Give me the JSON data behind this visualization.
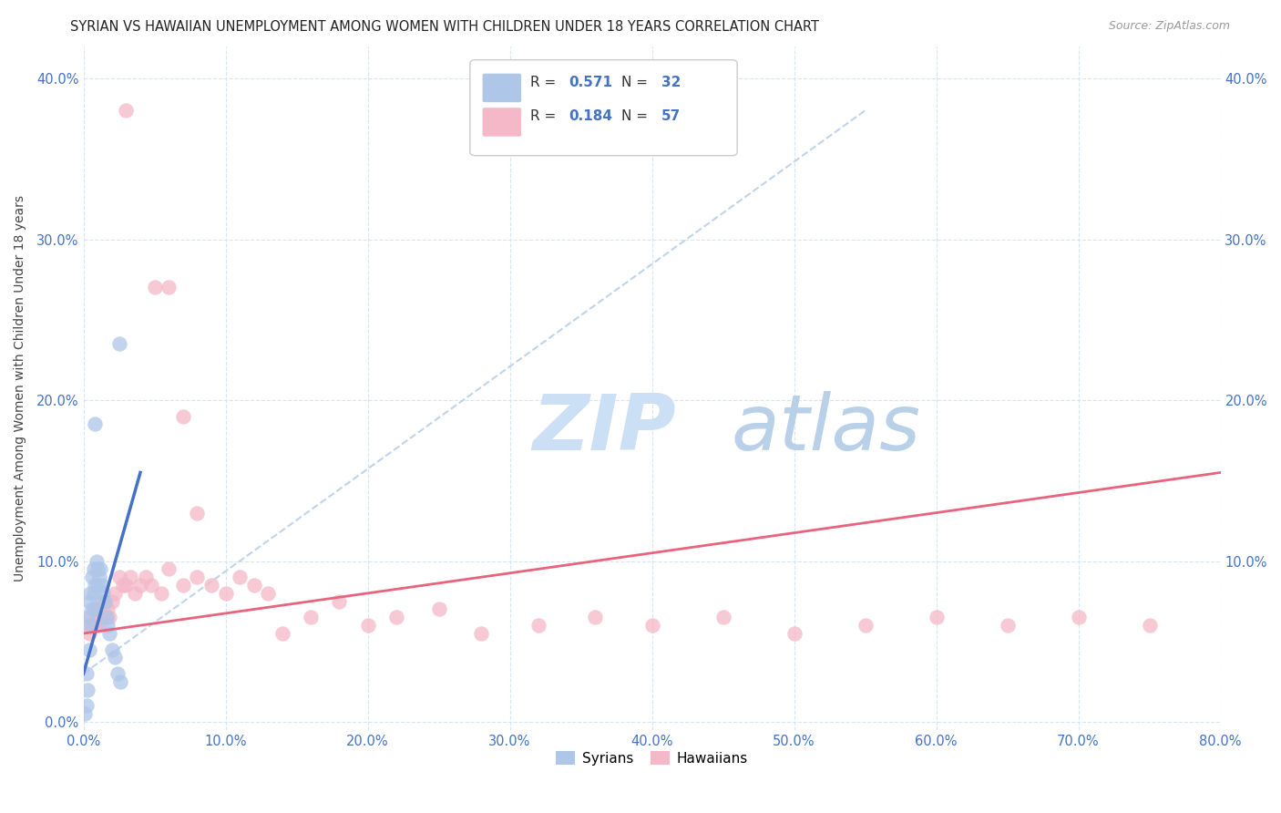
{
  "title": "SYRIAN VS HAWAIIAN UNEMPLOYMENT AMONG WOMEN WITH CHILDREN UNDER 18 YEARS CORRELATION CHART",
  "source": "Source: ZipAtlas.com",
  "ylabel": "Unemployment Among Women with Children Under 18 years",
  "syrian_R": 0.571,
  "syrian_N": 32,
  "hawaiian_R": 0.184,
  "hawaiian_N": 57,
  "syrian_color": "#aec6e8",
  "hawaiian_color": "#f4b8c8",
  "syrian_line_color": "#4472c4",
  "hawaiian_line_color": "#e8637e",
  "dashed_line_color": "#b8d0ea",
  "background_color": "#ffffff",
  "grid_color": "#d8e4f0",
  "tick_color": "#4472c4",
  "title_color": "#222222",
  "source_color": "#999999",
  "watermark_zip_color": "#cce0f5",
  "watermark_atlas_color": "#b8d0e8",
  "xlim": [
    0.0,
    0.8
  ],
  "ylim": [
    -0.005,
    0.42
  ],
  "xtick_vals": [
    0.0,
    0.1,
    0.2,
    0.3,
    0.4,
    0.5,
    0.6,
    0.7,
    0.8
  ],
  "ytick_vals": [
    0.0,
    0.1,
    0.2,
    0.3,
    0.4
  ],
  "syrian_x": [
    0.001,
    0.002,
    0.002,
    0.003,
    0.003,
    0.004,
    0.004,
    0.005,
    0.005,
    0.006,
    0.006,
    0.007,
    0.007,
    0.008,
    0.008,
    0.009,
    0.01,
    0.01,
    0.011,
    0.012,
    0.013,
    0.014,
    0.015,
    0.016,
    0.017,
    0.018,
    0.02,
    0.022,
    0.024,
    0.026,
    0.008,
    0.025
  ],
  "syrian_y": [
    0.005,
    0.01,
    0.03,
    0.02,
    0.065,
    0.045,
    0.075,
    0.06,
    0.08,
    0.07,
    0.09,
    0.08,
    0.095,
    0.07,
    0.085,
    0.1,
    0.085,
    0.095,
    0.09,
    0.095,
    0.085,
    0.08,
    0.075,
    0.065,
    0.06,
    0.055,
    0.045,
    0.04,
    0.03,
    0.025,
    0.185,
    0.235
  ],
  "hawaiian_x": [
    0.003,
    0.004,
    0.005,
    0.006,
    0.007,
    0.008,
    0.009,
    0.01,
    0.011,
    0.012,
    0.013,
    0.014,
    0.015,
    0.016,
    0.017,
    0.018,
    0.02,
    0.022,
    0.025,
    0.028,
    0.03,
    0.033,
    0.036,
    0.04,
    0.044,
    0.048,
    0.055,
    0.06,
    0.07,
    0.08,
    0.09,
    0.1,
    0.11,
    0.12,
    0.13,
    0.14,
    0.16,
    0.18,
    0.2,
    0.22,
    0.25,
    0.28,
    0.32,
    0.36,
    0.4,
    0.45,
    0.5,
    0.55,
    0.6,
    0.65,
    0.7,
    0.75,
    0.03,
    0.05,
    0.06,
    0.07,
    0.08
  ],
  "hawaiian_y": [
    0.06,
    0.055,
    0.065,
    0.06,
    0.07,
    0.06,
    0.065,
    0.07,
    0.06,
    0.065,
    0.075,
    0.07,
    0.075,
    0.065,
    0.07,
    0.065,
    0.075,
    0.08,
    0.09,
    0.085,
    0.085,
    0.09,
    0.08,
    0.085,
    0.09,
    0.085,
    0.08,
    0.095,
    0.085,
    0.09,
    0.085,
    0.08,
    0.09,
    0.085,
    0.08,
    0.055,
    0.065,
    0.075,
    0.06,
    0.065,
    0.07,
    0.055,
    0.06,
    0.065,
    0.06,
    0.065,
    0.055,
    0.06,
    0.065,
    0.06,
    0.065,
    0.06,
    0.38,
    0.27,
    0.27,
    0.19,
    0.13
  ],
  "syrian_line_x": [
    0.0,
    0.04
  ],
  "syrian_line_y_start": 0.03,
  "syrian_line_y_end": 0.155,
  "dashed_line_x": [
    0.0,
    0.55
  ],
  "dashed_line_y_start": 0.03,
  "dashed_line_y_end": 0.38,
  "hawaiian_line_x": [
    0.0,
    0.8
  ],
  "hawaiian_line_y_start": 0.055,
  "hawaiian_line_y_end": 0.155
}
